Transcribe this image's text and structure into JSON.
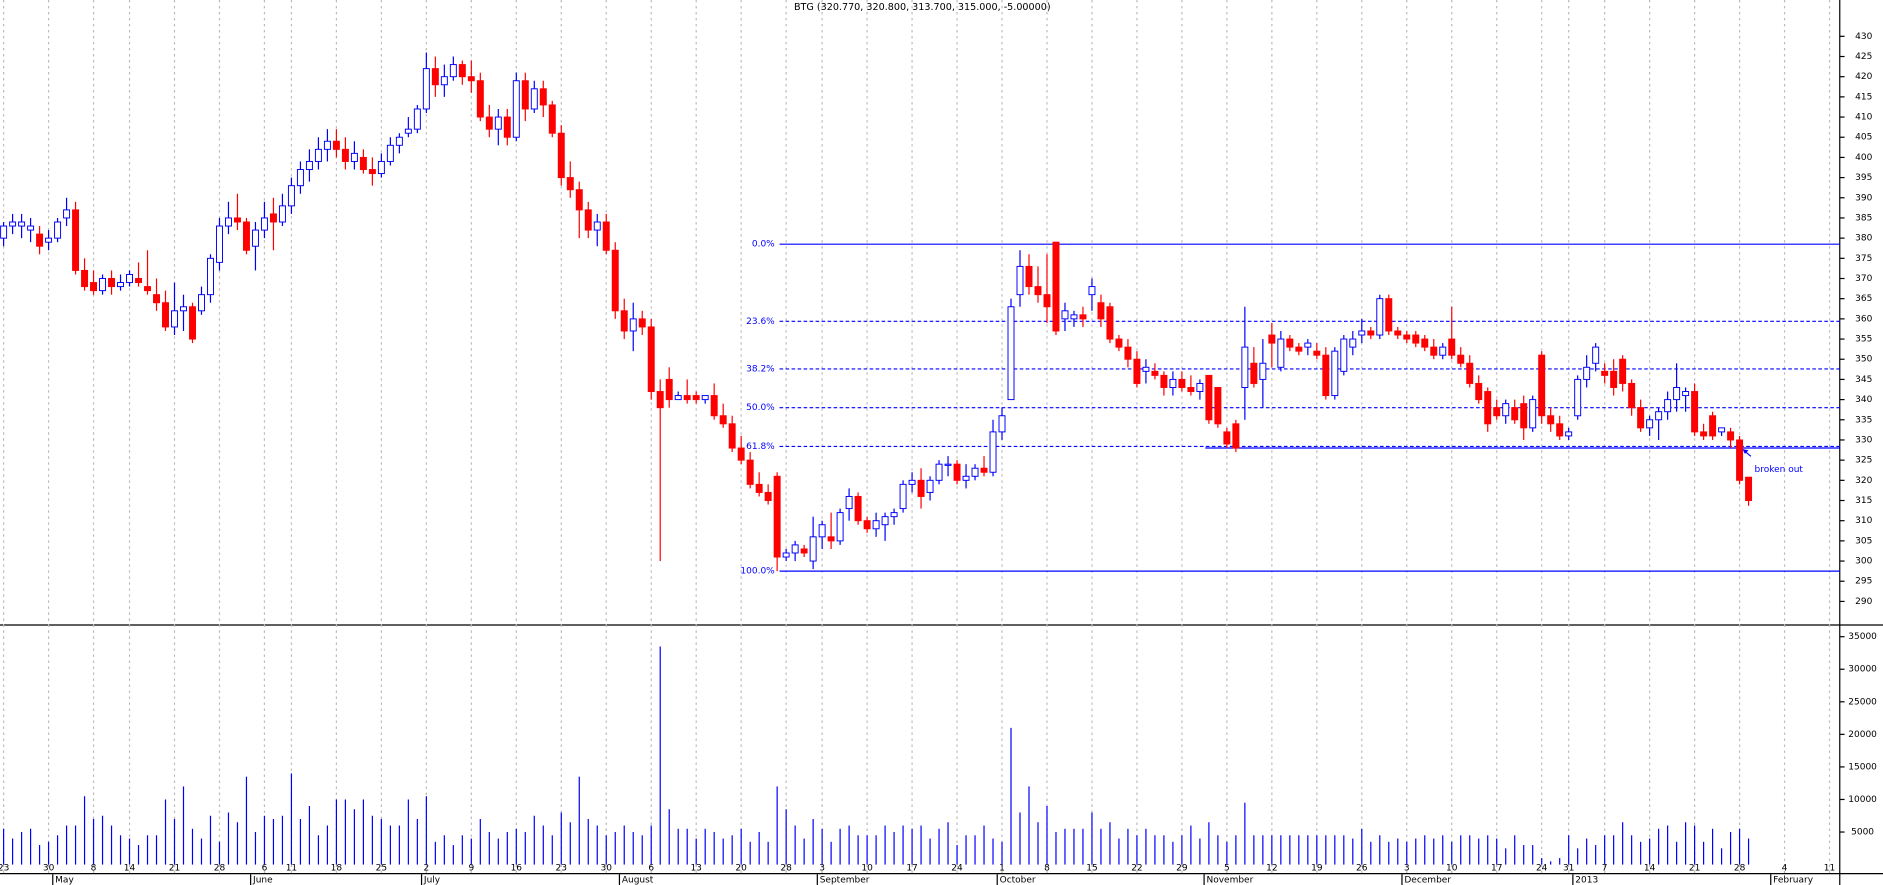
{
  "chart_data": {
    "type": "candlestick",
    "title": "BTG (320.770, 320.800, 313.700, 315.000, -5.00000)",
    "up_color": "#0000ff",
    "down_color": "#ff0000",
    "volume_color": "#0000ff",
    "grid": true,
    "open": [
      380,
      383,
      383,
      382,
      381,
      379,
      380,
      385,
      387,
      372,
      369,
      367,
      370,
      368,
      369,
      370,
      368,
      366,
      364,
      358,
      362,
      363,
      362,
      366,
      374,
      383,
      385,
      384,
      378,
      382,
      386,
      384,
      388,
      393,
      397,
      399,
      402,
      404,
      402,
      399,
      400,
      397,
      396,
      399,
      403,
      406,
      407,
      412,
      422,
      418,
      420,
      423,
      420,
      419,
      410,
      407,
      410,
      405,
      419,
      412,
      417,
      413,
      406,
      395,
      392,
      387,
      382,
      384,
      377,
      362,
      357,
      360,
      358,
      342,
      345,
      340,
      341,
      341,
      340,
      341,
      336,
      334,
      328,
      325,
      319,
      317,
      321,
      301,
      302,
      303,
      300,
      306,
      306,
      305,
      313,
      316,
      310,
      308,
      309,
      311,
      313,
      319,
      320,
      317,
      320,
      324,
      324,
      320,
      321,
      323,
      322,
      332,
      340,
      366,
      373,
      368,
      366,
      379,
      360,
      360,
      361,
      366,
      364,
      363,
      355,
      353,
      350,
      347,
      347,
      346,
      343,
      345,
      343,
      342,
      346,
      343,
      332,
      334,
      343,
      349,
      345,
      356,
      348,
      355,
      353,
      353,
      352,
      351,
      341,
      347,
      353,
      356,
      357,
      356,
      365,
      357,
      356,
      356,
      355,
      353,
      351,
      355,
      351,
      349,
      344,
      342,
      338,
      336,
      338,
      339,
      333,
      351,
      336,
      334,
      331,
      336,
      345,
      349,
      347,
      347,
      350,
      344,
      338,
      333,
      335,
      337,
      340,
      341,
      342,
      332,
      336,
      332,
      332,
      330,
      320.77
    ],
    "high": [
      384,
      386,
      386,
      385,
      383,
      382,
      385,
      390,
      389,
      375,
      372,
      371,
      372,
      371,
      372,
      374,
      377,
      370,
      367,
      369,
      366,
      364,
      368,
      376,
      385,
      389,
      391,
      385,
      384,
      389,
      390,
      391,
      395,
      399,
      402,
      405,
      407,
      407,
      405,
      404,
      402,
      400,
      401,
      405,
      406,
      410,
      413,
      426,
      425,
      423,
      425,
      424,
      424,
      421,
      413,
      412,
      412,
      421,
      421,
      419,
      419,
      414,
      408,
      399,
      394,
      389,
      386,
      386,
      379,
      365,
      364,
      362,
      360,
      345,
      348,
      342,
      345,
      342,
      341,
      344,
      339,
      336,
      331,
      327,
      322,
      319,
      322,
      303,
      305,
      304,
      311,
      310,
      312,
      313,
      318,
      317,
      311,
      312,
      312,
      313,
      320,
      322,
      323,
      321,
      325,
      326,
      325,
      324,
      324,
      326,
      335,
      338,
      365,
      377,
      376,
      373,
      376,
      379,
      364,
      362,
      363,
      370,
      366,
      364,
      356,
      355,
      352,
      350,
      349,
      347,
      347,
      347,
      346,
      345,
      346,
      343,
      333,
      335,
      363,
      353,
      355,
      359,
      357,
      356,
      354,
      355,
      354,
      353,
      353,
      356,
      357,
      360,
      358,
      366,
      366,
      358,
      357,
      357,
      356,
      355,
      354,
      363,
      353,
      351,
      346,
      343,
      340,
      340,
      340,
      341,
      341,
      352,
      338,
      336,
      333,
      346,
      351,
      354,
      349,
      350,
      351,
      345,
      340,
      336,
      338,
      342,
      349,
      343,
      344,
      334,
      337,
      333,
      333,
      331,
      320.8
    ],
    "low": [
      378,
      381,
      380,
      379,
      376,
      377,
      379,
      383,
      371,
      367,
      366,
      366,
      366,
      367,
      368,
      368,
      366,
      362,
      357,
      356,
      357,
      354,
      361,
      364,
      372,
      381,
      382,
      376,
      372,
      380,
      377,
      383,
      386,
      391,
      394,
      397,
      399,
      400,
      397,
      397,
      396,
      393,
      395,
      398,
      401,
      405,
      406,
      411,
      415,
      415,
      419,
      418,
      416,
      409,
      405,
      403,
      403,
      404,
      409,
      411,
      410,
      405,
      393,
      390,
      380,
      380,
      378,
      376,
      360,
      355,
      352,
      356,
      340,
      300,
      338,
      340,
      339,
      339,
      339,
      335,
      333,
      327,
      324,
      318,
      316,
      314,
      297.5,
      300,
      300,
      301,
      298,
      303,
      303,
      304,
      310,
      309,
      307,
      306,
      305,
      309,
      312,
      317,
      313,
      315,
      319,
      321,
      319,
      318,
      320,
      321,
      321,
      330,
      340,
      363,
      366,
      364,
      359,
      356,
      357,
      358,
      358,
      362,
      358,
      354,
      352,
      348,
      343,
      344,
      345,
      341,
      341,
      342,
      341,
      340,
      334,
      333,
      328,
      327,
      335,
      343,
      338,
      348,
      347,
      352,
      351,
      351,
      350,
      340,
      340,
      346,
      351,
      354,
      355,
      355,
      356,
      355,
      354,
      353,
      352,
      350,
      350,
      350,
      348,
      343,
      339,
      332,
      335,
      334,
      334,
      330,
      332,
      334,
      332,
      330,
      330,
      335,
      343,
      347,
      344,
      341,
      342,
      336,
      332,
      331,
      330,
      335,
      337,
      337,
      331,
      330,
      330,
      331,
      328,
      319,
      313.7
    ],
    "close": [
      383,
      384,
      384,
      383,
      378,
      380,
      384,
      387,
      372,
      368,
      367,
      370,
      368,
      369,
      371,
      369,
      367,
      364,
      358,
      362,
      363,
      355,
      366,
      375,
      383,
      385,
      384,
      377,
      382,
      385,
      384,
      388,
      393,
      397,
      399,
      402,
      404,
      402,
      399,
      401,
      397,
      396,
      399,
      403,
      405,
      407,
      412,
      422,
      418,
      420,
      423,
      420,
      419,
      410,
      407,
      410,
      405,
      419,
      412,
      417,
      413,
      406,
      395,
      392,
      387,
      382,
      384,
      377,
      362,
      357,
      360,
      358,
      342,
      338,
      340,
      341,
      340,
      340,
      341,
      336,
      334,
      328,
      325,
      319,
      317,
      315,
      301,
      302,
      304,
      302,
      306,
      309,
      305,
      312,
      316,
      310,
      308,
      310,
      311,
      312,
      319,
      320,
      316,
      320,
      324,
      324,
      320,
      321,
      323,
      322,
      332,
      336,
      363,
      373,
      368,
      366,
      363,
      357,
      362,
      361,
      360,
      368,
      360,
      355,
      353,
      350,
      344,
      348,
      346,
      343,
      345,
      343,
      342,
      344,
      335,
      334,
      329,
      328,
      353,
      344,
      349,
      354,
      355,
      353,
      352,
      354,
      351,
      341,
      352,
      355,
      355,
      357,
      356,
      365,
      357,
      356,
      355,
      354,
      353,
      351,
      353,
      351,
      349,
      344,
      340,
      334,
      336,
      339,
      335,
      333,
      340,
      336,
      334,
      331,
      332,
      345,
      348,
      353,
      346,
      343,
      344,
      338,
      333,
      335,
      337,
      340,
      343,
      342,
      332,
      331,
      331,
      333,
      330,
      320,
      315
    ],
    "volume": [
      5500,
      4000,
      5000,
      5500,
      3000,
      3500,
      4500,
      6000,
      6000,
      10500,
      7000,
      7500,
      6000,
      4500,
      4000,
      3000,
      4500,
      4500,
      10000,
      7000,
      12000,
      5500,
      4000,
      7500,
      3500,
      8000,
      6500,
      13500,
      5000,
      7500,
      7000,
      7500,
      14000,
      7000,
      9000,
      4500,
      6000,
      10000,
      10000,
      8500,
      10000,
      7500,
      7000,
      6000,
      6000,
      10000,
      7000,
      10500,
      3500,
      4500,
      3000,
      4500,
      4000,
      7000,
      5000,
      4000,
      5000,
      5500,
      5000,
      7500,
      6000,
      4500,
      8000,
      6500,
      13500,
      7000,
      6000,
      4500,
      5000,
      6000,
      5000,
      4500,
      6000,
      33500,
      8500,
      5500,
      5500,
      4000,
      5500,
      5000,
      4000,
      4500,
      5500,
      3500,
      5000,
      3500,
      12000,
      8500,
      6000,
      4000,
      7000,
      5500,
      3500,
      5500,
      6000,
      4500,
      4500,
      4500,
      6000,
      5000,
      6000,
      5500,
      6000,
      4000,
      5500,
      6500,
      3000,
      4500,
      4500,
      6000,
      4000,
      3500,
      21000,
      8000,
      12000,
      6500,
      9000,
      5000,
      5500,
      5500,
      5500,
      8000,
      5500,
      6500,
      4000,
      5500,
      4500,
      5500,
      4500,
      4500,
      3500,
      4500,
      6000,
      4000,
      6500,
      4500,
      3500,
      4500,
      9500,
      4500,
      4500,
      4500,
      4500,
      4500,
      4500,
      4500,
      4500,
      4500,
      4500,
      4500,
      4000,
      5500,
      3500,
      4500,
      3500,
      4000,
      3500,
      4000,
      4500,
      4000,
      4500,
      3500,
      4500,
      4500,
      4000,
      4500,
      4000,
      2500,
      4500,
      3000,
      3000,
      1000,
      500,
      1000,
      4500,
      2500,
      4000,
      3000,
      4500,
      4500,
      6500,
      4500,
      3500,
      4000,
      5500,
      6000,
      3500,
      6500,
      6000,
      3500,
      5500,
      2500,
      5000,
      5500,
      4000
    ],
    "ylim": [
      284.3,
      439
    ],
    "yticks": [
      290,
      295,
      300,
      305,
      310,
      315,
      320,
      325,
      330,
      335,
      340,
      345,
      350,
      355,
      360,
      365,
      370,
      375,
      380,
      385,
      390,
      395,
      400,
      405,
      410,
      415,
      420,
      425,
      430
    ],
    "volume_ylim": [
      0,
      36700
    ],
    "volume_yticks": [
      5000,
      10000,
      15000,
      20000,
      25000,
      30000,
      35000
    ],
    "xticks": [
      {
        "value": 0,
        "label": "23"
      },
      {
        "value": 5,
        "label": "30"
      },
      {
        "value": 10,
        "label": "8"
      },
      {
        "value": 14,
        "label": "14"
      },
      {
        "value": 19,
        "label": "21"
      },
      {
        "value": 24,
        "label": "28"
      },
      {
        "value": 29,
        "label": "6"
      },
      {
        "value": 32,
        "label": "11"
      },
      {
        "value": 37,
        "label": "18"
      },
      {
        "value": 42,
        "label": "25"
      },
      {
        "value": 47,
        "label": "2"
      },
      {
        "value": 52,
        "label": "9"
      },
      {
        "value": 57,
        "label": "16"
      },
      {
        "value": 62,
        "label": "23"
      },
      {
        "value": 67,
        "label": "30"
      },
      {
        "value": 72,
        "label": "6"
      },
      {
        "value": 77,
        "label": "13"
      },
      {
        "value": 82,
        "label": "20"
      },
      {
        "value": 87,
        "label": "28"
      },
      {
        "value": 91,
        "label": "3"
      },
      {
        "value": 96,
        "label": "10"
      },
      {
        "value": 101,
        "label": "17"
      },
      {
        "value": 106,
        "label": "24"
      },
      {
        "value": 111,
        "label": "1"
      },
      {
        "value": 116,
        "label": "8"
      },
      {
        "value": 121,
        "label": "15"
      },
      {
        "value": 126,
        "label": "22"
      },
      {
        "value": 131,
        "label": "29"
      },
      {
        "value": 136,
        "label": "5"
      },
      {
        "value": 141,
        "label": "12"
      },
      {
        "value": 146,
        "label": "19"
      },
      {
        "value": 151,
        "label": "26"
      },
      {
        "value": 156,
        "label": "3"
      },
      {
        "value": 161,
        "label": "10"
      },
      {
        "value": 166,
        "label": "17"
      },
      {
        "value": 171,
        "label": "24"
      },
      {
        "value": 174,
        "label": "31"
      },
      {
        "value": 178,
        "label": "7"
      },
      {
        "value": 183,
        "label": "14"
      },
      {
        "value": 188,
        "label": "21"
      },
      {
        "value": 193,
        "label": "28"
      },
      {
        "value": 198,
        "label": "4"
      },
      {
        "value": 203,
        "label": "11"
      }
    ],
    "month_labels": [
      {
        "value": 6,
        "label": "May"
      },
      {
        "value": 28,
        "label": "June"
      },
      {
        "value": 47,
        "label": "July"
      },
      {
        "value": 69,
        "label": "August"
      },
      {
        "value": 91,
        "label": "September"
      },
      {
        "value": 111,
        "label": "October"
      },
      {
        "value": 134,
        "label": "November"
      },
      {
        "value": 156,
        "label": "December"
      },
      {
        "value": 175,
        "label": "2013"
      },
      {
        "value": 197,
        "label": "February"
      }
    ],
    "fib_levels": [
      {
        "value": 378.5,
        "label": "0.0%"
      },
      {
        "value": 359.4,
        "label": "23.6%"
      },
      {
        "value": 347.6,
        "label": "38.2%"
      },
      {
        "value": 338,
        "label": "50.0%"
      },
      {
        "value": 328.4,
        "label": "61.8%"
      },
      {
        "value": 297.5,
        "label": "100.0%"
      }
    ],
    "support": 328,
    "annotation": "broken out"
  }
}
